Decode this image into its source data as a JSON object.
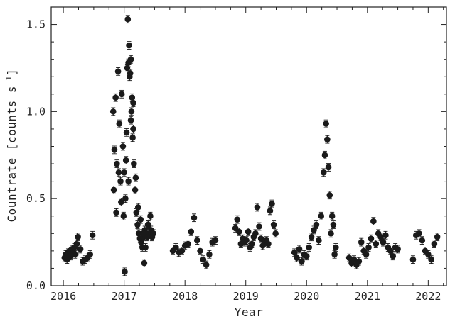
{
  "chart_data": {
    "type": "scatter",
    "title": "",
    "xlabel": "Year",
    "ylabel": "Countrate [counts s",
    "ylabel_sup": "−1",
    "ylabel_close": "]",
    "xlim": [
      2015.8,
      2022.3
    ],
    "ylim": [
      0.0,
      1.6
    ],
    "x_ticks": [
      2016,
      2017,
      2018,
      2019,
      2020,
      2021,
      2022
    ],
    "y_ticks": [
      0.0,
      0.5,
      1.0,
      1.5
    ],
    "x_tick_labels": [
      "2016",
      "2017",
      "2018",
      "2019",
      "2020",
      "2021",
      "2022"
    ],
    "y_tick_labels": [
      "0.0",
      "0.5",
      "1.0",
      "1.5"
    ],
    "grid": false,
    "series": [
      {
        "x": [
          2016.02,
          2016.04,
          2016.06,
          2016.08,
          2016.1,
          2016.12,
          2016.14,
          2016.16,
          2016.18,
          2016.2,
          2016.22,
          2016.24,
          2016.28,
          2016.32,
          2016.36,
          2016.4,
          2016.44,
          2016.48,
          2016.82,
          2016.84,
          2016.86,
          2016.88,
          2016.9,
          2016.92,
          2016.94,
          2016.96,
          2016.98,
          2017.0,
          2017.02,
          2017.04,
          2017.06,
          2017.08,
          2017.1,
          2017.12,
          2017.14,
          2017.16,
          2017.18,
          2017.2,
          2017.22,
          2017.24,
          2017.26,
          2017.28,
          2017.3,
          2017.32,
          2017.34,
          2017.36,
          2017.38,
          2017.4,
          2017.42,
          2017.44,
          2017.46,
          2017.48,
          2016.83,
          2016.87,
          2016.91,
          2016.95,
          2016.99,
          2017.03,
          2017.07,
          2017.11,
          2017.15,
          2017.19,
          2017.23,
          2017.27,
          2017.31,
          2017.35,
          2017.39,
          2017.43,
          2017.07,
          2017.09,
          2017.11,
          2017.13,
          2017.05,
          2017.15,
          2017.33,
          2017.01,
          2017.8,
          2017.85,
          2017.9,
          2017.95,
          2018.0,
          2018.05,
          2018.1,
          2018.15,
          2018.2,
          2018.25,
          2018.3,
          2018.35,
          2018.4,
          2018.45,
          2018.5,
          2018.83,
          2018.86,
          2018.89,
          2018.92,
          2018.95,
          2018.98,
          2019.01,
          2019.04,
          2019.07,
          2019.1,
          2019.13,
          2019.16,
          2019.19,
          2019.22,
          2019.25,
          2019.28,
          2019.31,
          2019.34,
          2019.37,
          2019.4,
          2019.43,
          2019.46,
          2019.49,
          2019.8,
          2019.84,
          2019.88,
          2019.92,
          2019.96,
          2020.0,
          2020.04,
          2020.08,
          2020.12,
          2020.16,
          2020.2,
          2020.24,
          2020.28,
          2020.3,
          2020.32,
          2020.34,
          2020.36,
          2020.38,
          2020.4,
          2020.42,
          2020.44,
          2020.46,
          2020.48,
          2020.7,
          2020.74,
          2020.78,
          2020.82,
          2020.86,
          2020.9,
          2020.94,
          2020.98,
          2021.02,
          2021.06,
          2021.1,
          2021.14,
          2021.18,
          2021.22,
          2021.26,
          2021.3,
          2021.34,
          2021.38,
          2021.42,
          2021.46,
          2021.5,
          2021.75,
          2021.8,
          2021.85,
          2021.9,
          2021.95,
          2022.0,
          2022.05,
          2022.1,
          2022.15
        ],
        "y": [
          0.16,
          0.18,
          0.15,
          0.19,
          0.2,
          0.17,
          0.21,
          0.19,
          0.22,
          0.18,
          0.24,
          0.28,
          0.21,
          0.14,
          0.15,
          0.16,
          0.18,
          0.29,
          1.0,
          0.78,
          1.08,
          0.7,
          1.23,
          0.93,
          0.6,
          1.1,
          0.8,
          0.65,
          0.5,
          0.88,
          1.53,
          1.38,
          1.22,
          1.0,
          0.85,
          0.7,
          0.55,
          0.42,
          0.35,
          0.3,
          0.27,
          0.25,
          0.22,
          0.28,
          0.32,
          0.3,
          0.28,
          0.35,
          0.3,
          0.32,
          0.28,
          0.3,
          0.55,
          0.42,
          0.65,
          0.48,
          0.4,
          0.72,
          0.6,
          0.95,
          1.05,
          0.62,
          0.45,
          0.38,
          0.3,
          0.22,
          0.35,
          0.4,
          1.28,
          1.2,
          1.3,
          1.08,
          1.25,
          0.9,
          0.13,
          0.08,
          0.2,
          0.22,
          0.19,
          0.2,
          0.23,
          0.24,
          0.31,
          0.39,
          0.26,
          0.2,
          0.15,
          0.12,
          0.18,
          0.25,
          0.26,
          0.33,
          0.38,
          0.31,
          0.24,
          0.27,
          0.25,
          0.26,
          0.31,
          0.22,
          0.24,
          0.28,
          0.3,
          0.45,
          0.34,
          0.27,
          0.23,
          0.25,
          0.26,
          0.24,
          0.43,
          0.47,
          0.35,
          0.3,
          0.19,
          0.16,
          0.21,
          0.14,
          0.18,
          0.17,
          0.22,
          0.28,
          0.32,
          0.35,
          0.26,
          0.4,
          0.65,
          0.75,
          0.93,
          0.84,
          0.68,
          0.52,
          0.3,
          0.4,
          0.35,
          0.18,
          0.22,
          0.16,
          0.13,
          0.15,
          0.12,
          0.14,
          0.25,
          0.2,
          0.18,
          0.22,
          0.27,
          0.37,
          0.24,
          0.3,
          0.28,
          0.25,
          0.29,
          0.22,
          0.2,
          0.17,
          0.22,
          0.21,
          0.15,
          0.29,
          0.3,
          0.26,
          0.2,
          0.18,
          0.15,
          0.24,
          0.28
        ],
        "yerr": 0.022
      }
    ]
  }
}
